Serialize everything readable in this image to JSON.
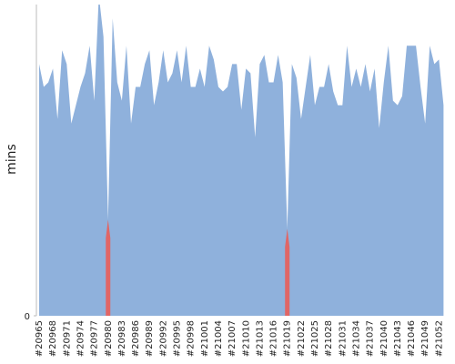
{
  "chart_data": {
    "type": "area",
    "y_label": "mins",
    "categories": [
      "#20965",
      null,
      null,
      "#20968",
      null,
      null,
      "#20971",
      null,
      null,
      "#20974",
      null,
      null,
      "#20977",
      null,
      null,
      "#20980",
      null,
      null,
      "#20983",
      null,
      null,
      "#20986",
      null,
      null,
      "#20989",
      null,
      null,
      "#20992",
      null,
      null,
      "#20995",
      null,
      null,
      "#20998",
      null,
      null,
      "#21001",
      null,
      null,
      "#21004",
      null,
      null,
      "#21007",
      null,
      null,
      "#21010",
      null,
      null,
      "#21013",
      null,
      null,
      "#21016",
      null,
      null,
      "#21019",
      null,
      null,
      "#21022",
      null,
      null,
      "#21025",
      null,
      null,
      "#21028",
      null,
      null,
      "#21031",
      null,
      null,
      "#21034",
      null,
      null,
      "#21037",
      null,
      null,
      "#21040",
      null,
      null,
      "#21043",
      null,
      null,
      "#21046",
      null,
      null,
      "#21049",
      null,
      null,
      "#21052",
      null
    ],
    "series": [
      {
        "color": "#8fb1dc",
        "failed_color": "#e06666",
        "values": [
          55,
          50,
          51,
          54,
          43,
          58,
          55,
          42,
          46,
          50,
          53,
          59,
          47,
          70,
          61,
          21,
          65,
          51,
          47,
          59,
          42,
          50,
          50,
          55,
          58,
          46,
          51,
          58,
          51,
          53,
          58,
          51,
          59,
          50,
          50,
          54,
          50,
          59,
          56,
          50,
          49,
          50,
          55,
          55,
          45,
          54,
          53,
          39,
          55,
          57,
          51,
          51,
          57,
          51,
          19,
          55,
          52,
          43,
          50,
          57,
          46,
          50,
          50,
          55,
          49,
          46,
          46,
          59,
          50,
          54,
          50,
          55,
          49,
          54,
          41,
          51,
          59,
          47,
          46,
          48,
          59,
          59,
          59,
          50,
          42,
          59,
          55,
          56,
          46
        ],
        "failed": [
          false,
          false,
          false,
          false,
          false,
          false,
          false,
          false,
          false,
          false,
          false,
          false,
          false,
          false,
          false,
          true,
          false,
          false,
          false,
          false,
          false,
          false,
          false,
          false,
          false,
          false,
          false,
          false,
          false,
          false,
          false,
          false,
          false,
          false,
          false,
          false,
          false,
          false,
          false,
          false,
          false,
          false,
          false,
          false,
          false,
          false,
          false,
          false,
          false,
          false,
          false,
          false,
          false,
          false,
          true,
          false,
          false,
          false,
          false,
          false,
          false,
          false,
          false,
          false,
          false,
          false,
          false,
          false,
          false,
          false,
          false,
          false,
          false,
          false,
          false,
          false,
          false,
          false,
          false,
          false,
          false,
          false,
          false,
          false,
          false,
          false,
          false,
          false,
          false
        ]
      }
    ],
    "ylim": [
      0,
      68
    ],
    "yticks": [
      0
    ],
    "grid": false
  }
}
